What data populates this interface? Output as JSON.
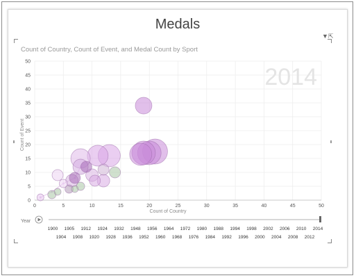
{
  "report": {
    "title": "Medals",
    "subtitle": "Count of Country, Count of Event, and Medal Count by Sport",
    "filter_icon": "filter-icon",
    "popout_icon": "pop-out-icon"
  },
  "chart_data": {
    "type": "scatter",
    "title": "",
    "subtitle": "Count of Country, Count of Event, and Medal Count by Sport",
    "xlabel": "Count of Country",
    "ylabel": "Count of Event",
    "xlim": [
      0,
      50
    ],
    "ylim": [
      0,
      50
    ],
    "xticks": [
      0,
      5,
      10,
      15,
      20,
      25,
      30,
      35,
      40,
      45,
      50
    ],
    "yticks": [
      0,
      5,
      10,
      15,
      20,
      25,
      30,
      35,
      40,
      45,
      50
    ],
    "grid": true,
    "watermark": "2014",
    "bubble_size": "Medal Count",
    "points": [
      {
        "x": 19,
        "y": 34,
        "size": 12,
        "color": "#c98ad9"
      },
      {
        "x": 21,
        "y": 17.5,
        "size": 18,
        "color": "#c98ad9"
      },
      {
        "x": 20,
        "y": 17,
        "size": 17,
        "color": "#c98ad9"
      },
      {
        "x": 19,
        "y": 17,
        "size": 17,
        "color": "#c98ad9"
      },
      {
        "x": 18.5,
        "y": 16.5,
        "size": 16,
        "color": "#c98ad9"
      },
      {
        "x": 13,
        "y": 16,
        "size": 16,
        "color": "#d9a6e6"
      },
      {
        "x": 11,
        "y": 16,
        "size": 15,
        "color": "#d9a6e6"
      },
      {
        "x": 8,
        "y": 15,
        "size": 14,
        "color": "#e0b9ea"
      },
      {
        "x": 8,
        "y": 12,
        "size": 11,
        "color": "#d6aee2"
      },
      {
        "x": 9,
        "y": 12,
        "size": 8,
        "color": "#a86db8"
      },
      {
        "x": 12,
        "y": 11,
        "size": 8,
        "color": "#d0b5d6"
      },
      {
        "x": 14,
        "y": 10,
        "size": 8,
        "color": "#a9c7a5"
      },
      {
        "x": 10,
        "y": 9,
        "size": 9,
        "color": "#dbb4e4"
      },
      {
        "x": 7,
        "y": 8,
        "size": 8,
        "color": "#a86db8"
      },
      {
        "x": 6.5,
        "y": 7,
        "size": 9,
        "color": "#d7b3e0"
      },
      {
        "x": 10.5,
        "y": 7,
        "size": 8,
        "color": "#d8ace3"
      },
      {
        "x": 12,
        "y": 7,
        "size": 9,
        "color": "#d8ace3"
      },
      {
        "x": 8,
        "y": 5,
        "size": 6,
        "color": "#a9c7a5"
      },
      {
        "x": 6,
        "y": 4,
        "size": 6,
        "color": "#b29ab8"
      },
      {
        "x": 7,
        "y": 4,
        "size": 5,
        "color": "#a9c7a5"
      },
      {
        "x": 4,
        "y": 3,
        "size": 5,
        "color": "#a9c7a5"
      },
      {
        "x": 3,
        "y": 2,
        "size": 6,
        "color": "#a9c7a5"
      },
      {
        "x": 4,
        "y": 9,
        "size": 8,
        "color": "#ecd3f2"
      },
      {
        "x": 5,
        "y": 6,
        "size": 6,
        "color": "#ecd3f2"
      },
      {
        "x": 1,
        "y": 1,
        "size": 5,
        "color": "#e7c7ee"
      }
    ],
    "trail": [
      [
        1,
        1
      ],
      [
        3,
        3
      ],
      [
        5,
        6
      ],
      [
        7,
        8
      ],
      [
        8,
        12
      ]
    ]
  },
  "play_axis": {
    "label": "Year",
    "play_icon": "play-icon",
    "current": "2014",
    "years_top": [
      "1900",
      "1905",
      "1912",
      "1924",
      "1932",
      "1948",
      "1956",
      "1964",
      "1972",
      "1980",
      "1988",
      "1994",
      "1998",
      "2002",
      "2006",
      "2010",
      "2014"
    ],
    "years_bottom": [
      "1904",
      "1908",
      "1920",
      "1928",
      "1936",
      "1952",
      "1960",
      "1968",
      "1976",
      "1984",
      "1992",
      "1996",
      "2000",
      "2004",
      "2008",
      "2012"
    ]
  }
}
